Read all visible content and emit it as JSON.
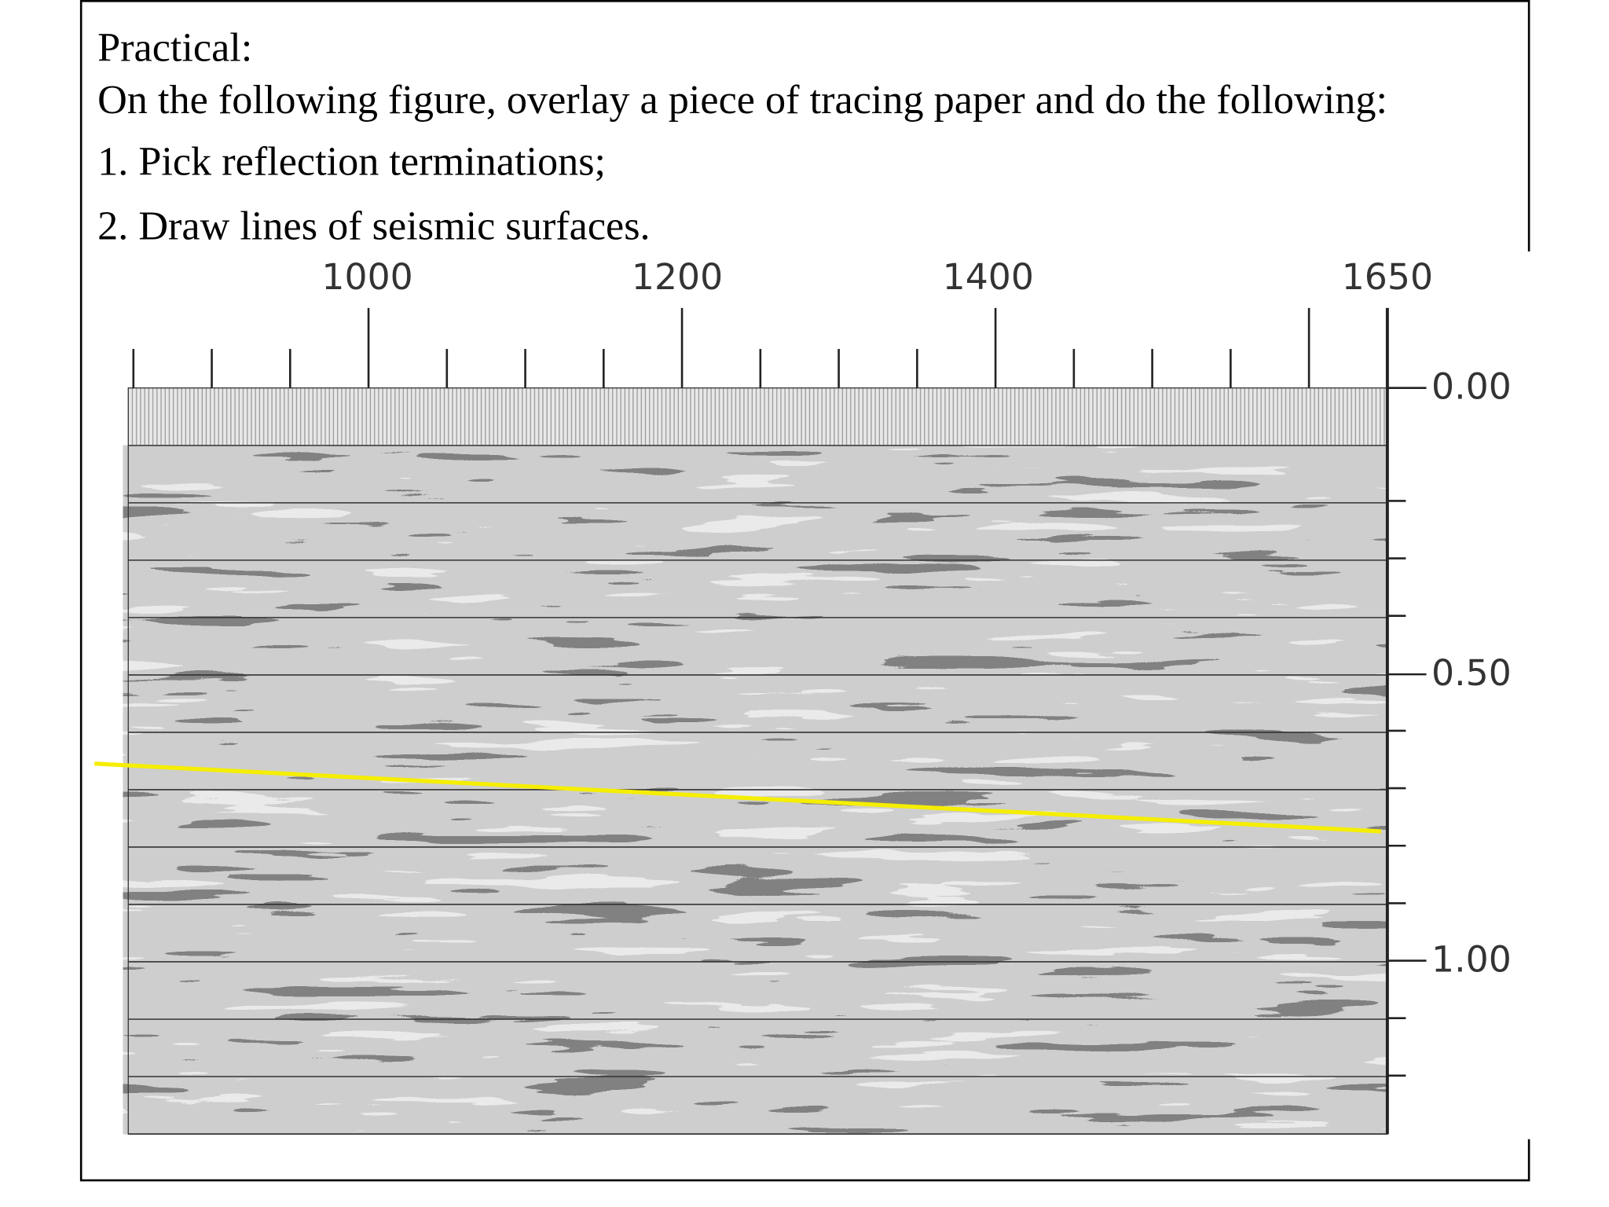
{
  "header": {
    "title": "Practical:",
    "lines": [
      "On the following figure, overlay a piece of tracing paper and do the following:",
      "1. Pick reflection terminations;",
      "2. Draw lines of seismic surfaces."
    ]
  },
  "figure": {
    "x_labels": [
      "1000",
      "1200",
      "1400",
      "1650"
    ],
    "y_labels": [
      "0.00",
      "0.50",
      "1.00"
    ]
  }
}
